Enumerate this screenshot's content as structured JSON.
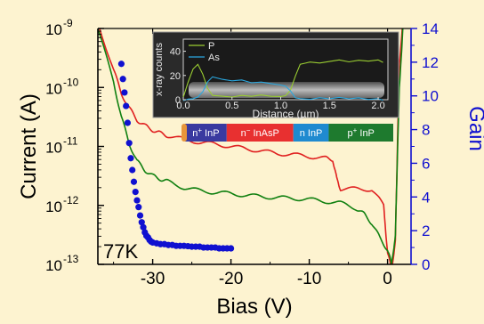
{
  "chart_data": {
    "type": "line",
    "xlabel": "Bias (V)",
    "ylabel_left": "Current (A)",
    "ylabel_right": "Gain",
    "xlim": [
      -37,
      3
    ],
    "ylim_left_log10": [
      -13,
      -9
    ],
    "ylim_right": [
      0,
      14
    ],
    "x_ticks": [
      "-30",
      "-20",
      "-10",
      "0"
    ],
    "x_tick_values": [
      -30,
      -20,
      -10,
      0
    ],
    "y_left_ticks": [
      {
        "base": "10",
        "exp": "-9",
        "value": -9
      },
      {
        "base": "10",
        "exp": "-10",
        "value": -10
      },
      {
        "base": "10",
        "exp": "-11",
        "value": -11
      },
      {
        "base": "10",
        "exp": "-12",
        "value": -12
      },
      {
        "base": "10",
        "exp": "-13",
        "value": -13
      }
    ],
    "y_right_ticks": [
      "0",
      "2",
      "4",
      "6",
      "8",
      "10",
      "12",
      "14"
    ],
    "y_right_tick_values": [
      0,
      2,
      4,
      6,
      8,
      10,
      12,
      14
    ],
    "annotation": "77K",
    "series": [
      {
        "color": "#e02020",
        "axis": "left",
        "x": [
          -37,
          -35,
          -34,
          -33,
          -32,
          -31,
          -30,
          -29,
          -28,
          -26,
          -24,
          -22,
          -20,
          -18,
          -16,
          -14,
          -12,
          -10,
          -8,
          -7,
          -6.5,
          -6,
          -4,
          -2,
          -0.5,
          0,
          0.5,
          1,
          1.5,
          2
        ],
        "log10_y": [
          -8.9,
          -9.7,
          -10.1,
          -10.35,
          -10.55,
          -10.65,
          -10.72,
          -10.78,
          -10.82,
          -10.88,
          -10.93,
          -10.96,
          -11.0,
          -11.04,
          -11.08,
          -11.12,
          -11.14,
          -11.17,
          -11.2,
          -11.22,
          -11.55,
          -11.72,
          -11.72,
          -11.73,
          -12.0,
          -12.8,
          -13.1,
          -12.6,
          -9.6,
          -8.8
        ]
      },
      {
        "color": "#108010",
        "axis": "left",
        "x": [
          -37,
          -35,
          -34,
          -33,
          -32,
          -31,
          -30,
          -29,
          -28,
          -26,
          -24,
          -22,
          -20,
          -18,
          -16,
          -14,
          -12,
          -10,
          -8,
          -6,
          -4,
          -3,
          -2,
          -1,
          0,
          0.5,
          1,
          1.5,
          2
        ],
        "log10_y": [
          -9.0,
          -9.9,
          -10.5,
          -10.95,
          -11.25,
          -11.4,
          -11.5,
          -11.55,
          -11.6,
          -11.7,
          -11.75,
          -11.78,
          -11.8,
          -11.83,
          -11.85,
          -11.87,
          -11.88,
          -11.9,
          -11.93,
          -11.96,
          -12.05,
          -12.15,
          -12.3,
          -12.55,
          -12.75,
          -13.0,
          -12.5,
          -10.0,
          -8.9
        ]
      },
      {
        "color": "#1010d0",
        "axis": "right",
        "kind": "scatter",
        "x": [
          -34.0,
          -33.8,
          -33.6,
          -33.4,
          -33.2,
          -33.0,
          -32.8,
          -32.6,
          -32.4,
          -32.2,
          -32.0,
          -31.8,
          -31.6,
          -31.4,
          -31.2,
          -31.0,
          -30.8,
          -30.6,
          -30.4,
          -30.2,
          -30.0,
          -29.5,
          -29.0,
          -28.5,
          -28.0,
          -27.5,
          -27.0,
          -26.5,
          -26.0,
          -25.5,
          -25.0,
          -24.5,
          -24.0,
          -23.5,
          -23.0,
          -22.5,
          -22.0,
          -21.5,
          -21.0,
          -20.5,
          -20.0
        ],
        "y": [
          11.9,
          11.0,
          10.2,
          9.4,
          8.4,
          7.2,
          6.3,
          5.6,
          4.9,
          4.3,
          3.8,
          3.4,
          2.9,
          2.5,
          2.2,
          1.9,
          1.7,
          1.6,
          1.45,
          1.35,
          1.3,
          1.25,
          1.2,
          1.2,
          1.15,
          1.15,
          1.1,
          1.1,
          1.1,
          1.08,
          1.05,
          1.05,
          1.05,
          1.0,
          1.0,
          1.0,
          1.0,
          0.95,
          0.95,
          0.95,
          0.95
        ]
      }
    ],
    "inset": {
      "xlabel": "Distance (µm)",
      "ylabel": "x-ray counts",
      "x_ticks": [
        "0.0",
        "0.5",
        "1.0",
        "1.5",
        "2.0"
      ],
      "x_tick_values": [
        0.0,
        0.5,
        1.0,
        1.5,
        2.0
      ],
      "y_ticks": [
        "0",
        "20",
        "40"
      ],
      "y_tick_values": [
        0,
        20,
        40
      ],
      "xlim": [
        0,
        2.1
      ],
      "ylim": [
        0,
        50
      ],
      "series": [
        {
          "name": "P",
          "color": "#9acd32",
          "x": [
            0.0,
            0.05,
            0.1,
            0.15,
            0.2,
            0.25,
            0.3,
            0.4,
            0.5,
            0.6,
            0.7,
            0.8,
            0.9,
            1.0,
            1.05,
            1.1,
            1.15,
            1.2,
            1.25,
            1.3,
            1.4,
            1.5,
            1.6,
            1.7,
            1.8,
            1.9,
            2.0,
            2.05
          ],
          "y": [
            2,
            15,
            26,
            30,
            22,
            10,
            4,
            3,
            2,
            3,
            2,
            3,
            2,
            2,
            3,
            8,
            20,
            30,
            31,
            32,
            31,
            32,
            33,
            31,
            32,
            31,
            32,
            30
          ]
        },
        {
          "name": "As",
          "color": "#2aa8e0",
          "x": [
            0.0,
            0.05,
            0.1,
            0.15,
            0.2,
            0.25,
            0.3,
            0.4,
            0.5,
            0.6,
            0.7,
            0.8,
            0.9,
            1.0,
            1.05,
            1.1,
            1.15,
            1.2,
            1.3,
            1.4,
            1.5,
            1.6,
            1.7,
            1.8,
            1.9,
            2.0,
            2.05
          ],
          "y": [
            0,
            1,
            1,
            2,
            6,
            14,
            18,
            16,
            15,
            16,
            14,
            15,
            14,
            13,
            12,
            8,
            2,
            1,
            0,
            1,
            0,
            1,
            0,
            1,
            0,
            1,
            0
          ]
        }
      ]
    },
    "layers": [
      {
        "base": "n",
        "sup": "+",
        "rest": " InP",
        "color": "#3a3aa0",
        "frac": 0.2
      },
      {
        "base": "n",
        "sup": "−",
        "rest": " InAsP",
        "color": "#e83030",
        "frac": 0.32
      },
      {
        "base": "n",
        "sup": "",
        "rest": " InP",
        "color": "#1f8ad0",
        "frac": 0.17
      },
      {
        "base": "p",
        "sup": "+",
        "rest": " InP",
        "color": "#1e7a2e",
        "frac": 0.31
      }
    ]
  }
}
